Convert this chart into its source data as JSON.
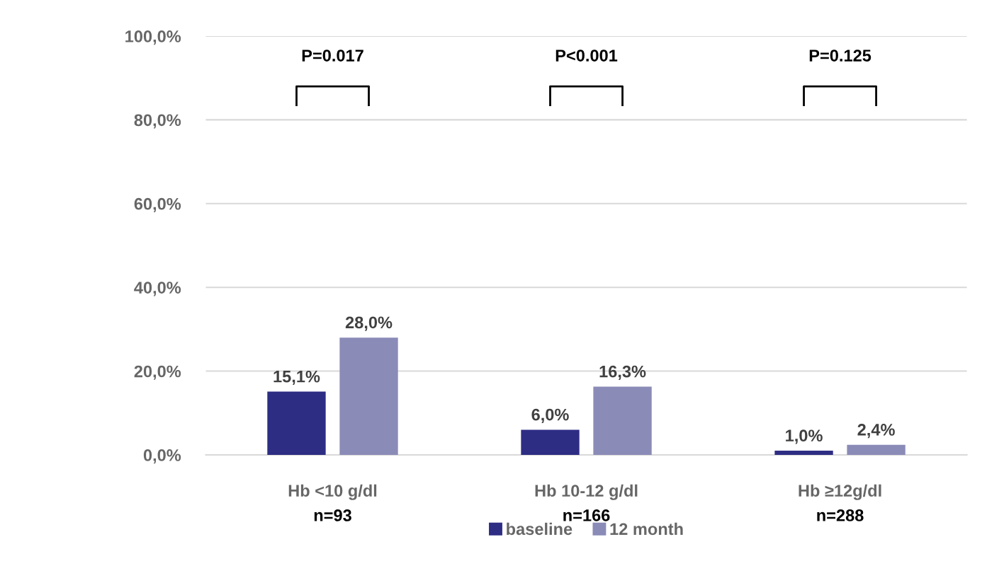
{
  "chart_data": {
    "type": "bar",
    "categories": [
      "Hb <10 g/dl\nn=93",
      "Hb 10-12 g/dl\nn=166",
      "Hb ≥12g/dl\nn=288"
    ],
    "series": [
      {
        "name": "baseline",
        "color": "#2e2d84",
        "values": [
          15.1,
          6.0,
          1.0
        ],
        "value_labels": [
          "15,1%",
          "6,0%",
          "1,0%"
        ]
      },
      {
        "name": "12 month",
        "color": "#8b8bb8",
        "values": [
          28.0,
          16.3,
          2.4
        ],
        "value_labels": [
          "28,0%",
          "16,3%",
          "2,4%"
        ]
      }
    ],
    "ylim": [
      0,
      100
    ],
    "yticks": [
      {
        "value": 0,
        "label": "0,0%"
      },
      {
        "value": 20,
        "label": "20,0%"
      },
      {
        "value": 40,
        "label": "40,0%"
      },
      {
        "value": 60,
        "label": "60,0%"
      },
      {
        "value": 80,
        "label": "80,0%"
      },
      {
        "value": 100,
        "label": "100,0%"
      }
    ],
    "grid": "y",
    "legend": "bottom",
    "annotations": [
      "P=0.017",
      "P<0.001",
      "P=0.125"
    ]
  }
}
